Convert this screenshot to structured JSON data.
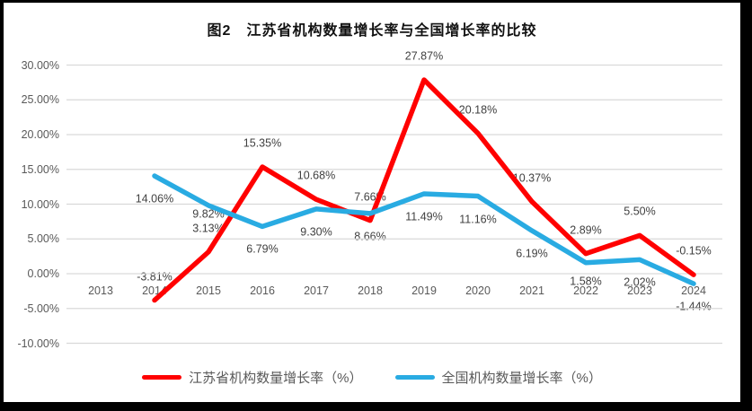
{
  "title": "图2　江苏省机构数量增长率与全国增长率的比较",
  "frame": {
    "border_color": "#000000",
    "background_color": "#ffffff"
  },
  "colors": {
    "jiangsu_line": "#ff0000",
    "national_line": "#29abe2",
    "gridline": "#d9d9d9",
    "axis_text": "#595959",
    "data_label_text": "#404040",
    "title_text": "#111111"
  },
  "chart_data": {
    "type": "line",
    "title": "图2　江苏省机构数量增长率与全国增长率的比较",
    "categories": [
      "2013",
      "2014",
      "2015",
      "2016",
      "2017",
      "2018",
      "2019",
      "2020",
      "2021",
      "2022",
      "2023",
      "2024"
    ],
    "series": [
      {
        "name": "江苏省机构数量增长率（%）",
        "color": "#ff0000",
        "label_position": "above",
        "values": [
          null,
          -3.81,
          3.13,
          15.35,
          10.68,
          7.66,
          27.87,
          20.18,
          10.37,
          2.89,
          5.5,
          -0.15
        ],
        "labels": [
          null,
          "-3.81%",
          "3.13%",
          "15.35%",
          "10.68%",
          "7.66%",
          "27.87%",
          "20.18%",
          "10.37%",
          "2.89%",
          "5.50%",
          "-0.15%"
        ]
      },
      {
        "name": "全国机构数量增长率（%）",
        "color": "#29abe2",
        "label_position": "below",
        "values": [
          null,
          14.06,
          9.82,
          6.79,
          9.3,
          8.66,
          11.49,
          11.16,
          6.19,
          1.58,
          2.02,
          -1.44
        ],
        "labels": [
          null,
          "14.06%",
          "9.82%",
          "6.79%",
          "9.30%",
          "8.66%",
          "11.49%",
          "11.16%",
          "6.19%",
          "1.58%",
          "2.02%",
          "-1.44%"
        ]
      }
    ],
    "y_axis": {
      "ticks": [
        "30.00%",
        "25.00%",
        "20.00%",
        "15.00%",
        "10.00%",
        "5.00%",
        "0.00%",
        "-5.00%",
        "-10.00%"
      ],
      "tick_values": [
        30,
        25,
        20,
        15,
        10,
        5,
        0,
        -5,
        -10
      ],
      "min": -10,
      "max": 30
    },
    "grid": true,
    "legend_position": "bottom"
  }
}
